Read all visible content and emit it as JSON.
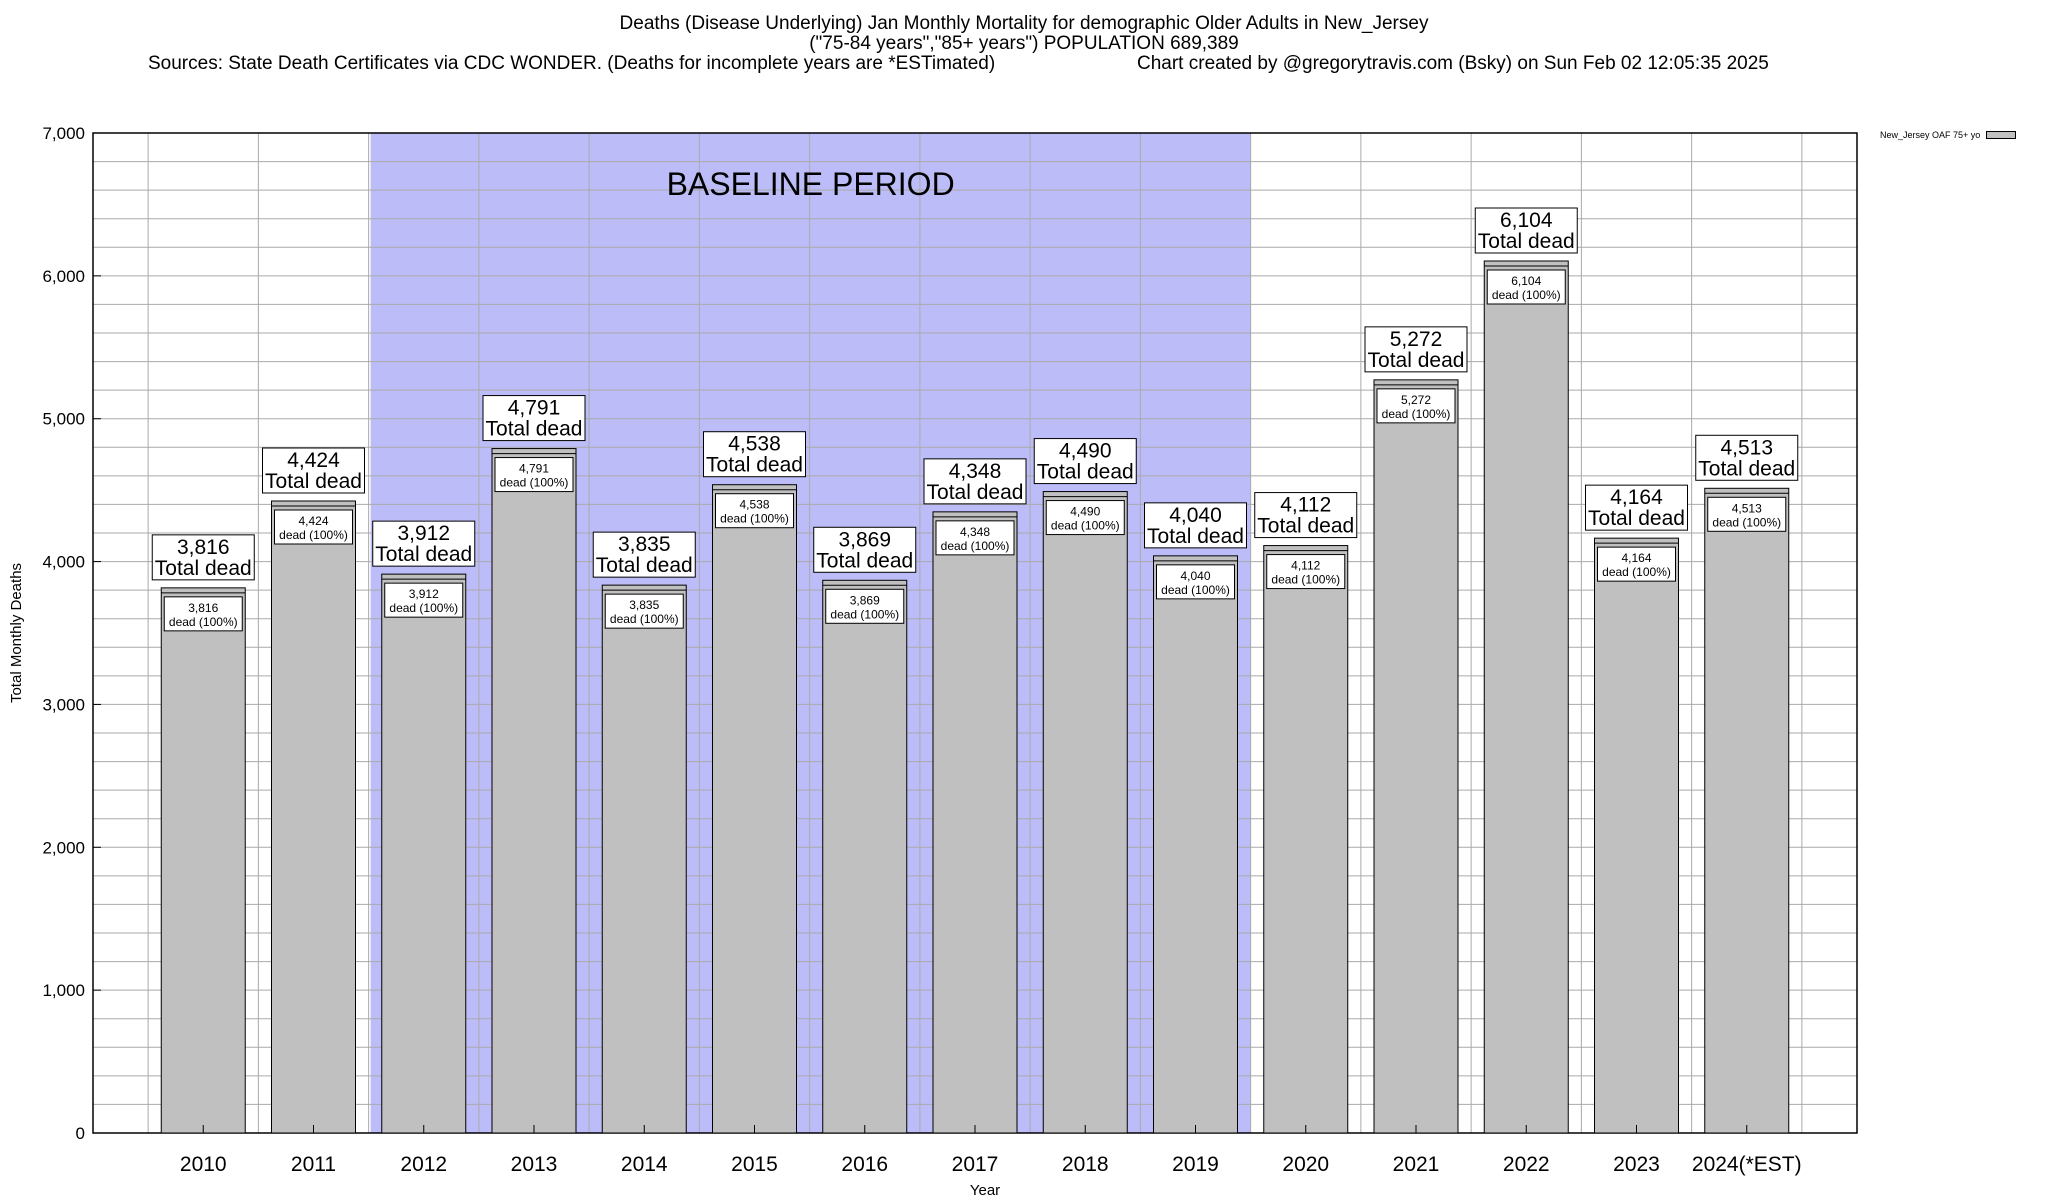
{
  "titles": {
    "line1": "Deaths (Disease Underlying) Jan Monthly Mortality for demographic Older Adults in New_Jersey",
    "line2": "(\"75-84 years\",\"85+ years\") POPULATION 689,389",
    "sources": "Sources: State Death Certificates via CDC WONDER. (Deaths for incomplete years are *ESTimated)",
    "credit": "Chart created by @gregorytravis.com (Bsky) on Sun Feb 02 12:05:35 2025"
  },
  "legend": {
    "label": "New_Jersey OAF 75+ yo"
  },
  "colors": {
    "bar": "#c0c0c0",
    "baseline": "#bcbcf8",
    "grid": "#aaaaaa"
  },
  "chart_data": {
    "type": "bar",
    "title": "Deaths (Disease Underlying) Jan Monthly Mortality for demographic Older Adults in New_Jersey",
    "xlabel": "Year",
    "ylabel": "Total Monthly Deaths",
    "ylim": [
      0,
      7000
    ],
    "yticks": [
      0,
      1000,
      2000,
      3000,
      4000,
      5000,
      6000,
      7000
    ],
    "ytick_labels": [
      "0",
      "1,000",
      "2,000",
      "3,000",
      "4,000",
      "5,000",
      "6,000",
      "7,000"
    ],
    "grid": true,
    "legend_position": "top-right",
    "categories": [
      "2010",
      "2011",
      "2012",
      "2013",
      "2014",
      "2015",
      "2016",
      "2017",
      "2018",
      "2019",
      "2020",
      "2021",
      "2022",
      "2023",
      "2024(*EST)"
    ],
    "series": [
      {
        "name": "New_Jersey OAF 75+ yo",
        "values": [
          3816,
          4424,
          3912,
          4791,
          3835,
          4538,
          3869,
          4348,
          4490,
          4040,
          4112,
          5272,
          6104,
          4164,
          4513
        ]
      }
    ],
    "value_labels": [
      "3,816",
      "4,424",
      "3,912",
      "4,791",
      "3,835",
      "4,538",
      "3,869",
      "4,348",
      "4,490",
      "4,040",
      "4,112",
      "5,272",
      "6,104",
      "4,164",
      "4,513"
    ],
    "total_label": "Total dead",
    "share_label": "dead (100%)",
    "annotations": [
      {
        "text": "BASELINE PERIOD",
        "start": "2012",
        "end": "2019"
      }
    ]
  }
}
